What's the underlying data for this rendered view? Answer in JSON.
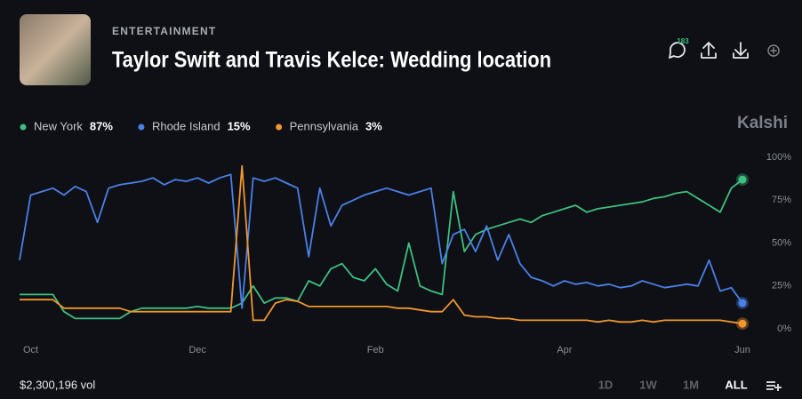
{
  "header": {
    "category": "ENTERTAINMENT",
    "title": "Taylor Swift and Travis Kelce: Wedding location",
    "comments": "183"
  },
  "brand": "Kalshi",
  "footer": {
    "volume": "$2,300,196 vol",
    "ranges": [
      "1D",
      "1W",
      "1M",
      "ALL"
    ]
  },
  "chart_data": {
    "type": "line",
    "categories": [
      null,
      "Oct",
      null,
      null,
      null,
      null,
      null,
      null,
      null,
      null,
      null,
      null,
      null,
      null,
      null,
      null,
      "Dec",
      null,
      null,
      null,
      null,
      null,
      null,
      null,
      null,
      null,
      null,
      null,
      null,
      null,
      null,
      null,
      "Feb",
      null,
      null,
      null,
      null,
      null,
      null,
      null,
      null,
      null,
      null,
      null,
      null,
      null,
      null,
      null,
      null,
      "Apr",
      null,
      null,
      null,
      null,
      null,
      null,
      null,
      null,
      null,
      null,
      null,
      null,
      null,
      null,
      null,
      "Jun"
    ],
    "series": [
      {
        "name": "New York",
        "color": "#3dbf80",
        "current": {
          "value": 87,
          "label": "87%"
        },
        "values": [
          20,
          20,
          20,
          20,
          10,
          6,
          6,
          6,
          6,
          6,
          10,
          12,
          12,
          12,
          12,
          12,
          13,
          12,
          12,
          12,
          15,
          25,
          15,
          18,
          18,
          16,
          28,
          25,
          35,
          38,
          30,
          28,
          35,
          26,
          22,
          50,
          25,
          22,
          20,
          80,
          45,
          55,
          58,
          60,
          62,
          64,
          62,
          66,
          68,
          70,
          72,
          68,
          70,
          71,
          72,
          73,
          74,
          76,
          77,
          79,
          80,
          76,
          72,
          68,
          82,
          87
        ]
      },
      {
        "name": "Rhode Island",
        "color": "#4a80e8",
        "current": {
          "value": 15,
          "label": "15%"
        },
        "values": [
          40,
          78,
          80,
          82,
          78,
          83,
          80,
          62,
          82,
          84,
          85,
          86,
          88,
          84,
          87,
          86,
          88,
          85,
          88,
          90,
          12,
          88,
          86,
          88,
          85,
          82,
          42,
          82,
          60,
          72,
          75,
          78,
          80,
          82,
          80,
          78,
          80,
          82,
          38,
          55,
          58,
          45,
          60,
          40,
          55,
          38,
          30,
          28,
          25,
          28,
          26,
          27,
          25,
          26,
          24,
          25,
          28,
          26,
          24,
          25,
          26,
          25,
          40,
          22,
          24,
          15
        ]
      },
      {
        "name": "Pennsylvania",
        "color": "#f0962e",
        "current": {
          "value": 3,
          "label": "3%"
        },
        "values": [
          17,
          17,
          17,
          17,
          12,
          12,
          12,
          12,
          12,
          12,
          10,
          10,
          10,
          10,
          10,
          10,
          10,
          10,
          10,
          10,
          95,
          5,
          5,
          15,
          17,
          16,
          13,
          13,
          13,
          13,
          13,
          13,
          13,
          13,
          12,
          12,
          11,
          10,
          10,
          17,
          8,
          7,
          7,
          6,
          6,
          5,
          5,
          5,
          5,
          5,
          5,
          5,
          4,
          5,
          4,
          4,
          5,
          4,
          5,
          5,
          5,
          5,
          5,
          5,
          4,
          3
        ]
      }
    ],
    "ylim": [
      0,
      100
    ],
    "yticks": [
      {
        "value": 0,
        "label": "0%"
      },
      {
        "value": 25,
        "label": "25%"
      },
      {
        "value": 50,
        "label": "50%"
      },
      {
        "value": 75,
        "label": "75%"
      },
      {
        "value": 100,
        "label": "100%"
      }
    ],
    "grid": false
  }
}
